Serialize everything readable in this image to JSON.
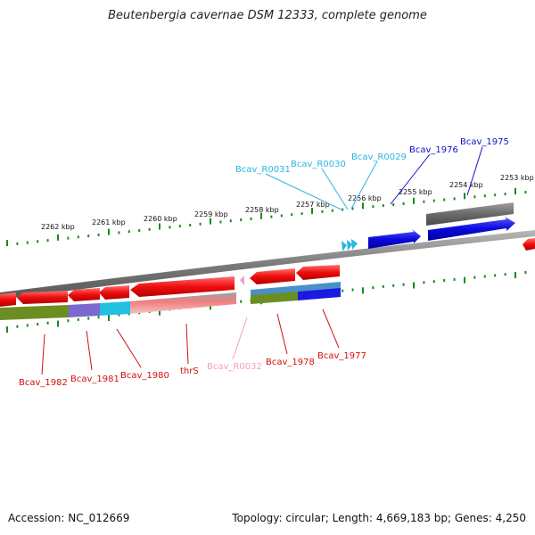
{
  "title": "Beutenbergia cavernae DSM 12333, complete genome",
  "footer": {
    "accession": "Accession: NC_012669",
    "topology": "Topology: circular; Length: 4,669,183 bp; Genes: 4,250"
  },
  "ruler_labels": [
    "2262 kbp",
    "2261 kbp",
    "2260 kbp",
    "2259 kbp",
    "2258 kbp",
    "2257 kbp",
    "2256 kbp",
    "2255 kbp",
    "2254 kbp",
    "2253 kbp"
  ],
  "upper_labels": [
    {
      "text": "Bcav_R0031",
      "color": "#29b6e0"
    },
    {
      "text": "Bcav_R0030",
      "color": "#29b6e0"
    },
    {
      "text": "Bcav_R0029",
      "color": "#29b6e0"
    },
    {
      "text": "Bcav_1976",
      "color": "#1010c8"
    },
    {
      "text": "Bcav_1975",
      "color": "#1010c8"
    }
  ],
  "lower_labels": [
    {
      "text": "Bcav_1982",
      "color": "#d01010"
    },
    {
      "text": "Bcav_1981",
      "color": "#d01010"
    },
    {
      "text": "Bcav_1980",
      "color": "#d01010"
    },
    {
      "text": "thrS",
      "color": "#d01010"
    },
    {
      "text": "Bcav_R0032",
      "color": "#f0a0c8"
    },
    {
      "text": "Bcav_1978",
      "color": "#d01010"
    },
    {
      "text": "Bcav_1977",
      "color": "#d01010"
    }
  ],
  "colors": {
    "forward_gene": "#0a0adc",
    "reverse_gene": "#ee0d0d",
    "rrna": "#29b6e0",
    "trna": "#f0a0c8",
    "backbone": "#808080",
    "ticks": "#1a8a1a"
  }
}
